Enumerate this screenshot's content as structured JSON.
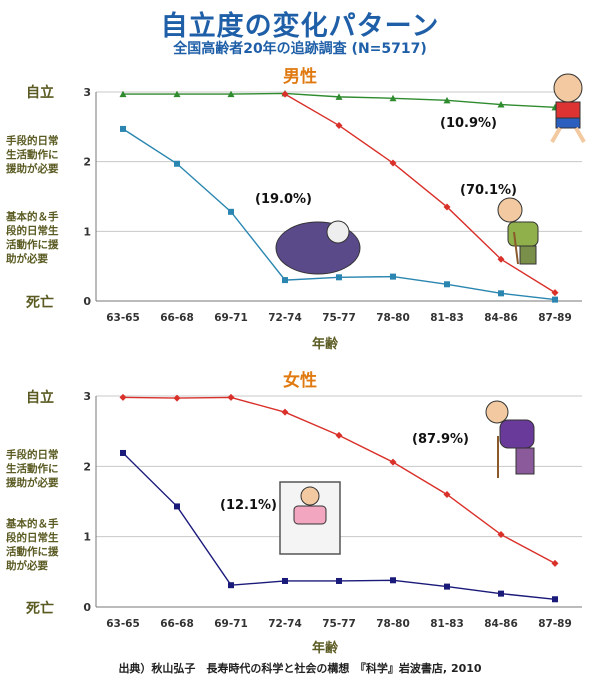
{
  "title": "自立度の変化パターン",
  "subtitle": "全国高齢者20年の追跡調査 (N=5717)",
  "ylevels": {
    "independent": "自立",
    "iadl_lines": [
      "手段的日常",
      "生活動作に",
      "援助が必要"
    ],
    "badl_lines": [
      "基本的＆手",
      "段的日常生",
      "活動作に援",
      "助が必要"
    ],
    "death": "死亡"
  },
  "source": "出典）秋山弘子　長寿時代の科学と社会の構想　『科学』岩波書店, 2010",
  "colors": {
    "green": "#2e8b2e",
    "red": "#d9302a",
    "teal": "#2a86b0",
    "navy": "#1a1a7a",
    "title": "#1f5fa8",
    "panel_title": "#e07a10",
    "axis_label": "#5a5a22"
  },
  "chart_data": [
    {
      "type": "line",
      "title": "男性",
      "xlabel": "年齢",
      "ylabel": "",
      "ylim": [
        0,
        3
      ],
      "yticks": [
        0,
        1,
        2,
        3
      ],
      "grid": true,
      "categories": [
        "63-65",
        "66-68",
        "69-71",
        "72-74",
        "75-77",
        "78-80",
        "81-83",
        "84-86",
        "87-89"
      ],
      "series": [
        {
          "color": "#2e8b2e",
          "marker": "triangle",
          "values": [
            2.97,
            2.97,
            2.97,
            2.98,
            2.93,
            2.91,
            2.88,
            2.82,
            2.78
          ],
          "label": "(10.9%)"
        },
        {
          "color": "#d9302a",
          "marker": "diamond",
          "values": [
            null,
            null,
            null,
            2.97,
            2.52,
            1.98,
            1.35,
            0.6,
            0.12
          ],
          "label": "(70.1%)"
        },
        {
          "color": "#2a86b0",
          "marker": "square",
          "values": [
            2.47,
            1.97,
            1.28,
            0.3,
            0.34,
            0.35,
            0.24,
            0.11,
            0.02
          ],
          "label": "(19.0%)"
        }
      ]
    },
    {
      "type": "line",
      "title": "女性",
      "xlabel": "年齢",
      "ylabel": "",
      "ylim": [
        0,
        3
      ],
      "yticks": [
        0,
        1,
        2,
        3
      ],
      "grid": true,
      "categories": [
        "63-65",
        "66-68",
        "69-71",
        "72-74",
        "75-77",
        "78-80",
        "81-83",
        "84-86",
        "87-89"
      ],
      "series": [
        {
          "color": "#d9302a",
          "marker": "diamond",
          "values": [
            2.98,
            2.97,
            2.98,
            2.77,
            2.44,
            2.06,
            1.6,
            1.03,
            0.62
          ],
          "label": "(87.9%)"
        },
        {
          "color": "#1a1a7a",
          "marker": "square",
          "values": [
            2.19,
            1.43,
            0.31,
            0.37,
            0.37,
            0.38,
            0.29,
            0.19,
            0.11
          ],
          "label": "(12.1%)"
        }
      ]
    }
  ]
}
